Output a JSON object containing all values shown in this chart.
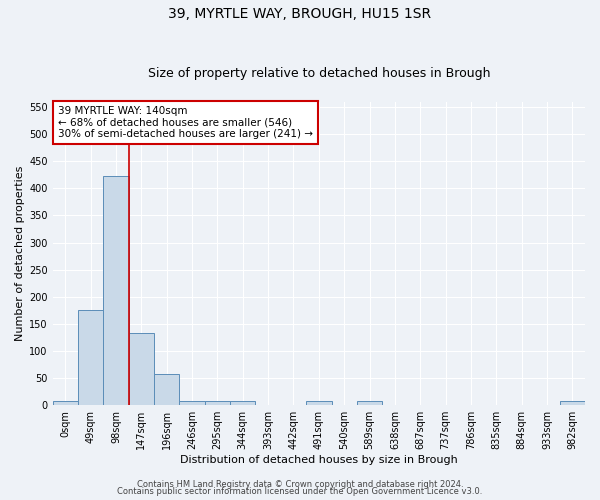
{
  "title": "39, MYRTLE WAY, BROUGH, HU15 1SR",
  "subtitle": "Size of property relative to detached houses in Brough",
  "xlabel": "Distribution of detached houses by size in Brough",
  "ylabel": "Number of detached properties",
  "bin_labels": [
    "0sqm",
    "49sqm",
    "98sqm",
    "147sqm",
    "196sqm",
    "246sqm",
    "295sqm",
    "344sqm",
    "393sqm",
    "442sqm",
    "491sqm",
    "540sqm",
    "589sqm",
    "638sqm",
    "687sqm",
    "737sqm",
    "786sqm",
    "835sqm",
    "884sqm",
    "933sqm",
    "982sqm"
  ],
  "bar_values": [
    8,
    175,
    422,
    133,
    57,
    8,
    7,
    7,
    0,
    0,
    7,
    0,
    7,
    0,
    0,
    0,
    0,
    0,
    0,
    0,
    7
  ],
  "bar_color": "#c9d9e8",
  "bar_edge_color": "#5b8db8",
  "vline_color": "#cc0000",
  "vline_position": 2.5,
  "ylim": [
    0,
    560
  ],
  "yticks": [
    0,
    50,
    100,
    150,
    200,
    250,
    300,
    350,
    400,
    450,
    500,
    550
  ],
  "annotation_text": "39 MYRTLE WAY: 140sqm\n← 68% of detached houses are smaller (546)\n30% of semi-detached houses are larger (241) →",
  "annotation_box_color": "#ffffff",
  "annotation_box_edge_color": "#cc0000",
  "footer_line1": "Contains HM Land Registry data © Crown copyright and database right 2024.",
  "footer_line2": "Contains public sector information licensed under the Open Government Licence v3.0.",
  "bg_color": "#eef2f7",
  "grid_color": "#ffffff",
  "title_fontsize": 10,
  "subtitle_fontsize": 9,
  "axis_label_fontsize": 8,
  "tick_fontsize": 7,
  "annotation_fontsize": 7.5,
  "footer_fontsize": 6
}
